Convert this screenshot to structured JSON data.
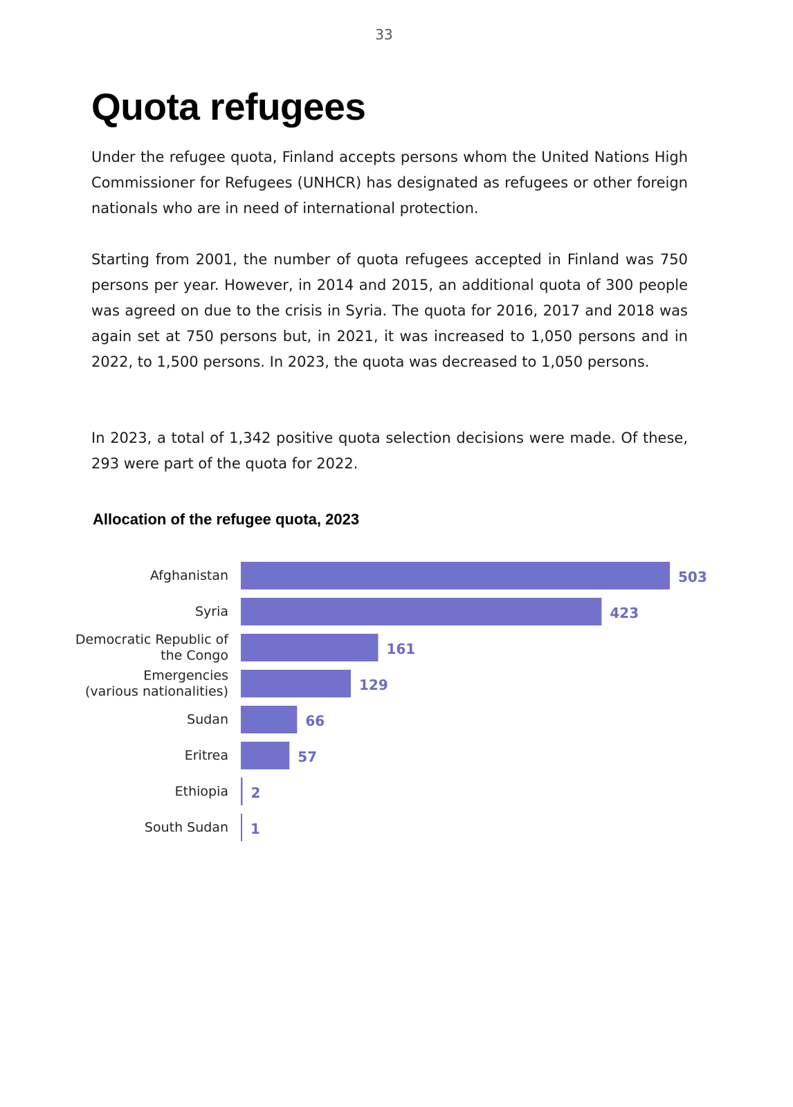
{
  "page_number": "33",
  "title": "Quota refugees",
  "paragraphs": [
    "Under the refugee quota, Finland accepts persons whom the United Nations High Commissioner for Refugees (UNHCR) has designated as refugees or other foreign nationals who are in need of international protection.",
    "Starting from 2001, the number of quota refugees accepted in Finland was 750 persons per year. However, in 2014 and 2015, an additional quota of 300 people was agreed on due to the crisis in Syria. The quota for 2016, 2017 and 2018 was again set at 750 persons but, in 2021, it was increased to 1,050 persons and in 2022, to 1,500 persons. In 2023, the quota was decreased to 1,050 persons.",
    "In 2023, a total of 1,342 positive quota selection decisions were made. Of these, 293 were part of the quota for 2022."
  ],
  "colors": {
    "bar": "#7272cc",
    "value_label": "#6b6bc4"
  },
  "chart_data": {
    "type": "bar",
    "orientation": "horizontal",
    "title": "Allocation of the refugee quota, 2023",
    "categories": [
      [
        "Afghanistan"
      ],
      [
        "Syria"
      ],
      [
        "Democratic Republic of",
        "the Congo"
      ],
      [
        "Emergencies",
        "(various nationalities)"
      ],
      [
        "Sudan"
      ],
      [
        "Eritrea"
      ],
      [
        "Ethiopia"
      ],
      [
        "South Sudan"
      ]
    ],
    "values": [
      503,
      423,
      161,
      129,
      66,
      57,
      2,
      1
    ],
    "value_labels": [
      "503",
      "423",
      "161",
      "129",
      "66",
      "57",
      "2",
      "1"
    ],
    "xlabel": "",
    "ylabel": "",
    "grid": false,
    "legend": "none"
  }
}
